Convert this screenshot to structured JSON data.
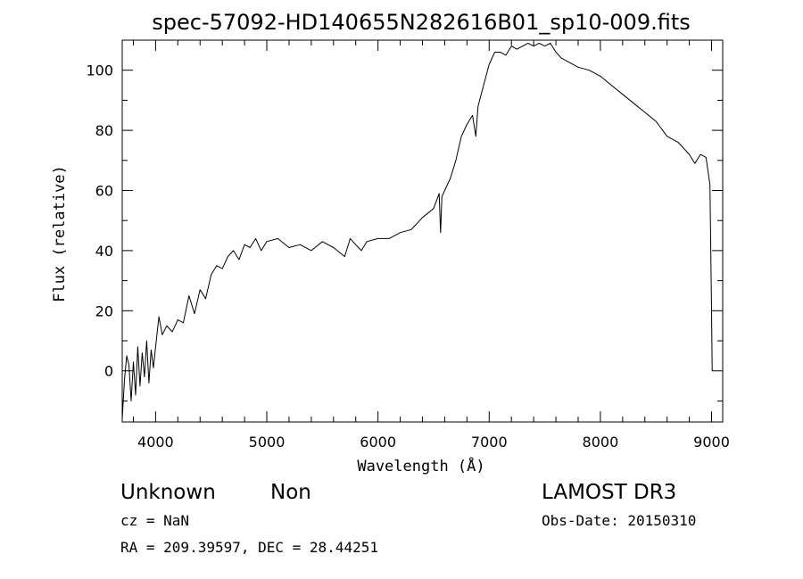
{
  "chart_data": {
    "type": "line",
    "title": "spec-57092-HD140655N282616B01_sp10-009.fits",
    "xlabel": "Wavelength (Å)",
    "ylabel": "Flux (relative)",
    "xlim": [
      3700,
      9100
    ],
    "ylim": [
      -17,
      110
    ],
    "xticks": [
      4000,
      5000,
      6000,
      7000,
      8000,
      9000
    ],
    "yticks": [
      0,
      20,
      40,
      60,
      80,
      100
    ],
    "grid": false,
    "series": [
      {
        "x": [
          3700,
          3720,
          3740,
          3760,
          3780,
          3800,
          3820,
          3840,
          3860,
          3880,
          3900,
          3920,
          3940,
          3960,
          3980,
          4000,
          4030,
          4060,
          4100,
          4150,
          4200,
          4250,
          4300,
          4350,
          4400,
          4450,
          4500,
          4550,
          4600,
          4650,
          4700,
          4750,
          4800,
          4850,
          4900,
          4950,
          5000,
          5100,
          5200,
          5300,
          5400,
          5500,
          5600,
          5700,
          5750,
          5800,
          5850,
          5900,
          6000,
          6100,
          6200,
          6300,
          6400,
          6500,
          6550,
          6563,
          6575,
          6600,
          6650,
          6700,
          6750,
          6800,
          6850,
          6880,
          6900,
          6950,
          7000,
          7050,
          7100,
          7150,
          7200,
          7250,
          7300,
          7350,
          7400,
          7450,
          7500,
          7550,
          7600,
          7650,
          7700,
          7800,
          7900,
          8000,
          8100,
          8200,
          8300,
          8400,
          8500,
          8600,
          8700,
          8800,
          8850,
          8900,
          8950,
          8985,
          9000,
          9005
        ],
        "y": [
          -16,
          -3,
          5,
          2,
          -10,
          3,
          -8,
          8,
          -5,
          6,
          -2,
          10,
          -4,
          7,
          1,
          8,
          18,
          12,
          15,
          13,
          17,
          16,
          25,
          19,
          27,
          24,
          32,
          35,
          34,
          38,
          40,
          37,
          42,
          41,
          44,
          40,
          43,
          44,
          41,
          42,
          40,
          43,
          41,
          38,
          44,
          42,
          40,
          43,
          44,
          44,
          46,
          47,
          51,
          54,
          59,
          46,
          58,
          60,
          64,
          70,
          78,
          82,
          85,
          78,
          88,
          95,
          102,
          106,
          106,
          105,
          108,
          107,
          108,
          109,
          108,
          109,
          108,
          109,
          106,
          104,
          103,
          101,
          100,
          98,
          95,
          92,
          89,
          86,
          83,
          78,
          76,
          72,
          69,
          72,
          71,
          62,
          20,
          0
        ]
      }
    ]
  },
  "info": {
    "object_class": "Unknown",
    "subclass": "Non",
    "survey": "LAMOST DR3",
    "cz": "cz = NaN",
    "obs_date": "Obs-Date: 20150310",
    "coords": "RA = 209.39597, DEC =  28.44251"
  }
}
